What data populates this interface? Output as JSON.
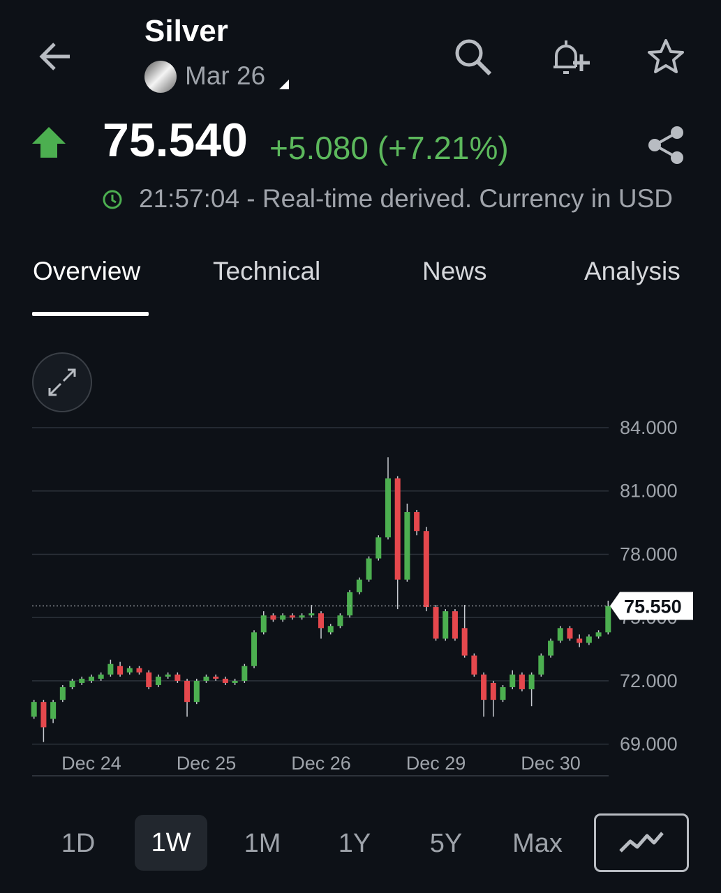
{
  "header": {
    "title": "Silver",
    "contract": "Mar 26"
  },
  "quote": {
    "price": "75.540",
    "change": "+5.080 (+7.21%)",
    "time_note": "21:57:04 - Real-time derived. Currency in USD"
  },
  "tabs": {
    "items": [
      "Overview",
      "Technical",
      "News",
      "Analysis"
    ],
    "selected": "Overview"
  },
  "chart_data": {
    "type": "candlestick",
    "categories": [
      null,
      null,
      null,
      null,
      null,
      null,
      "Dec 24",
      null,
      null,
      null,
      null,
      null,
      null,
      null,
      null,
      null,
      null,
      null,
      "Dec 25",
      null,
      null,
      null,
      null,
      null,
      null,
      null,
      null,
      null,
      null,
      null,
      "Dec 26",
      null,
      null,
      null,
      null,
      null,
      null,
      null,
      null,
      null,
      null,
      null,
      "Dec 29",
      null,
      null,
      null,
      null,
      null,
      null,
      null,
      null,
      null,
      null,
      null,
      "Dec 30",
      null,
      null,
      null,
      null,
      null,
      null
    ],
    "open": [
      70.3,
      71.0,
      70.2,
      71.1,
      71.7,
      71.9,
      72.0,
      72.1,
      72.3,
      72.7,
      72.4,
      72.6,
      72.4,
      71.8,
      72.2,
      72.3,
      72.0,
      71.0,
      72.0,
      72.2,
      72.1,
      71.9,
      72.0,
      72.7,
      74.3,
      75.1,
      74.9,
      75.1,
      75.0,
      75.1,
      75.2,
      74.3,
      74.6,
      75.1,
      76.2,
      76.8,
      77.8,
      78.8,
      81.6,
      76.8,
      80.0,
      79.1,
      75.5,
      74.0,
      75.3,
      74.5,
      73.2,
      72.3,
      71.9,
      71.1,
      71.7,
      72.3,
      71.6,
      72.3,
      73.2,
      73.9,
      74.5,
      74.0,
      73.8,
      74.1,
      74.3
    ],
    "high": [
      71.1,
      71.1,
      71.1,
      71.8,
      72.1,
      72.2,
      72.3,
      72.4,
      73.0,
      72.9,
      72.7,
      72.7,
      72.5,
      72.3,
      72.4,
      72.4,
      72.1,
      72.1,
      72.3,
      72.3,
      72.2,
      72.1,
      72.8,
      74.4,
      75.3,
      75.2,
      75.2,
      75.2,
      75.2,
      75.6,
      75.3,
      74.7,
      75.2,
      76.3,
      76.9,
      77.9,
      78.9,
      82.6,
      81.7,
      80.4,
      80.1,
      79.3,
      75.6,
      75.4,
      75.4,
      75.6,
      73.3,
      72.4,
      72.0,
      71.8,
      72.5,
      72.4,
      72.4,
      73.3,
      74.0,
      74.6,
      74.6,
      74.2,
      74.2,
      74.4,
      75.8
    ],
    "low": [
      70.2,
      69.1,
      70.0,
      71.0,
      71.6,
      71.8,
      71.9,
      72.0,
      72.2,
      72.2,
      72.3,
      72.3,
      71.6,
      71.7,
      72.1,
      71.9,
      70.3,
      70.9,
      71.9,
      72.0,
      71.8,
      71.8,
      71.9,
      72.6,
      74.2,
      74.8,
      74.8,
      74.9,
      74.9,
      75.0,
      74.0,
      74.2,
      74.5,
      75.0,
      76.1,
      76.7,
      77.7,
      78.7,
      75.4,
      76.7,
      78.9,
      75.3,
      73.9,
      73.9,
      73.9,
      73.1,
      72.2,
      70.3,
      70.3,
      71.0,
      71.6,
      71.5,
      70.8,
      72.2,
      73.1,
      73.8,
      73.9,
      73.6,
      73.7,
      74.0,
      74.2
    ],
    "close": [
      71.0,
      69.8,
      71.0,
      71.7,
      72.0,
      72.1,
      72.2,
      72.3,
      72.8,
      72.3,
      72.6,
      72.4,
      71.7,
      72.2,
      72.3,
      72.0,
      71.0,
      72.0,
      72.2,
      72.1,
      71.9,
      72.0,
      72.7,
      74.3,
      75.1,
      74.9,
      75.1,
      75.0,
      75.1,
      75.2,
      74.5,
      74.6,
      75.1,
      76.2,
      76.8,
      77.8,
      78.8,
      81.6,
      76.8,
      80.0,
      79.1,
      75.5,
      74.0,
      75.3,
      74.0,
      73.2,
      72.3,
      71.1,
      71.1,
      71.7,
      72.3,
      71.6,
      72.3,
      73.2,
      73.9,
      74.5,
      74.0,
      73.8,
      74.1,
      74.3,
      75.55
    ],
    "up_color": "#4caf50",
    "down_color": "#e5484d",
    "ylim": [
      67.5,
      84
    ],
    "yticks": [
      {
        "value": 69,
        "label": "69.000"
      },
      {
        "value": 72,
        "label": "72.000"
      },
      {
        "value": 75,
        "label": "75.000"
      },
      {
        "value": 78,
        "label": "78.000"
      },
      {
        "value": 81,
        "label": "81.000"
      },
      {
        "value": 84,
        "label": "84.000"
      }
    ],
    "grid": true,
    "last_price": {
      "value": 75.55,
      "label": "75.550"
    }
  },
  "ranges": {
    "items": [
      "1D",
      "1W",
      "1M",
      "1Y",
      "5Y",
      "Max"
    ],
    "selected": "1W"
  }
}
